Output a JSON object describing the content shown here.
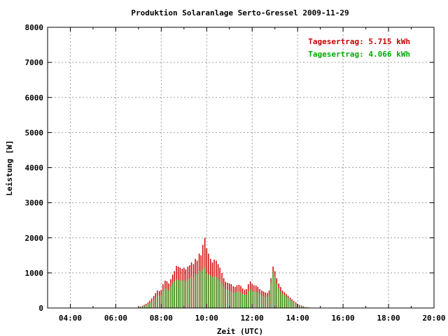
{
  "chart_data": {
    "type": "bar",
    "title": "Produktion Solaranlage Serto-Gressel 2009-11-29",
    "xlabel": "Zeit (UTC)",
    "ylabel": "Leistung [W]",
    "xlim": [
      3.0,
      20.0
    ],
    "ylim": [
      0,
      8000
    ],
    "x_ticks": [
      {
        "v": 4,
        "label": "04:00"
      },
      {
        "v": 6,
        "label": "06:00"
      },
      {
        "v": 8,
        "label": "08:00"
      },
      {
        "v": 10,
        "label": "10:00"
      },
      {
        "v": 12,
        "label": "12:00"
      },
      {
        "v": 14,
        "label": "14:00"
      },
      {
        "v": 16,
        "label": "16:00"
      },
      {
        "v": 18,
        "label": "18:00"
      },
      {
        "v": 20,
        "label": "20:00"
      }
    ],
    "y_ticks": [
      {
        "v": 0,
        "label": "0"
      },
      {
        "v": 1000,
        "label": "1000"
      },
      {
        "v": 2000,
        "label": "2000"
      },
      {
        "v": 3000,
        "label": "3000"
      },
      {
        "v": 4000,
        "label": "4000"
      },
      {
        "v": 5000,
        "label": "5000"
      },
      {
        "v": 6000,
        "label": "6000"
      },
      {
        "v": 7000,
        "label": "7000"
      },
      {
        "v": 8000,
        "label": "8000"
      }
    ],
    "grid": true,
    "legend_position": "top-right",
    "legend": [
      {
        "label": "Tagesertrag: 5.715 kWh",
        "color": "#cc0000"
      },
      {
        "label": "Tagesertrag: 4.066 kWh",
        "color": "#00aa00"
      }
    ],
    "bar_step_hours": 0.0833,
    "x": [
      7.0,
      7.08,
      7.17,
      7.25,
      7.33,
      7.42,
      7.5,
      7.58,
      7.67,
      7.75,
      7.83,
      7.92,
      8.0,
      8.08,
      8.17,
      8.25,
      8.33,
      8.42,
      8.5,
      8.58,
      8.67,
      8.75,
      8.83,
      8.92,
      9.0,
      9.08,
      9.17,
      9.25,
      9.33,
      9.42,
      9.5,
      9.58,
      9.67,
      9.75,
      9.83,
      9.92,
      10.0,
      10.08,
      10.17,
      10.25,
      10.33,
      10.42,
      10.5,
      10.58,
      10.67,
      10.75,
      10.83,
      10.92,
      11.0,
      11.08,
      11.17,
      11.25,
      11.33,
      11.42,
      11.5,
      11.58,
      11.67,
      11.75,
      11.83,
      11.92,
      12.0,
      12.08,
      12.17,
      12.25,
      12.33,
      12.42,
      12.5,
      12.58,
      12.67,
      12.75,
      12.83,
      12.92,
      13.0,
      13.08,
      13.17,
      13.25,
      13.33,
      13.42,
      13.5,
      13.58,
      13.67,
      13.75,
      13.83,
      13.92,
      14.0,
      14.08,
      14.17,
      14.25,
      14.33,
      14.42,
      14.5,
      14.58,
      14.67,
      14.75
    ],
    "series": [
      {
        "name": "Tagesertrag: 5.715 kWh",
        "color": "#cc0000",
        "values": [
          20,
          40,
          60,
          90,
          120,
          160,
          210,
          270,
          340,
          420,
          500,
          480,
          520,
          680,
          780,
          760,
          700,
          820,
          950,
          1050,
          1200,
          1180,
          1150,
          1120,
          1150,
          1100,
          1180,
          1220,
          1300,
          1250,
          1400,
          1350,
          1550,
          1500,
          1800,
          2000,
          1700,
          1550,
          1400,
          1300,
          1380,
          1350,
          1250,
          1150,
          1000,
          850,
          750,
          720,
          700,
          680,
          620,
          600,
          650,
          660,
          630,
          560,
          520,
          540,
          680,
          760,
          680,
          650,
          640,
          600,
          540,
          500,
          470,
          440,
          430,
          500,
          850,
          1180,
          1050,
          850,
          700,
          600,
          500,
          450,
          400,
          350,
          300,
          250,
          200,
          160,
          120,
          90,
          70,
          50,
          30,
          20,
          15,
          10,
          5,
          3
        ]
      },
      {
        "name": "Tagesertrag: 4.066 kWh",
        "color": "#00aa00",
        "values": [
          10,
          25,
          40,
          60,
          85,
          110,
          150,
          190,
          240,
          300,
          360,
          350,
          370,
          480,
          560,
          550,
          500,
          600,
          700,
          760,
          820,
          800,
          780,
          770,
          800,
          760,
          820,
          860,
          920,
          880,
          980,
          950,
          1060,
          1040,
          1100,
          1150,
          1000,
          950,
          920,
          880,
          900,
          880,
          820,
          760,
          680,
          600,
          540,
          520,
          500,
          480,
          440,
          430,
          460,
          470,
          450,
          400,
          380,
          390,
          480,
          540,
          480,
          460,
          460,
          430,
          390,
          360,
          340,
          320,
          310,
          360,
          720,
          1050,
          900,
          700,
          560,
          480,
          400,
          360,
          320,
          280,
          240,
          200,
          160,
          130,
          95,
          70,
          55,
          40,
          25,
          15,
          12,
          8,
          4,
          2
        ]
      }
    ]
  }
}
